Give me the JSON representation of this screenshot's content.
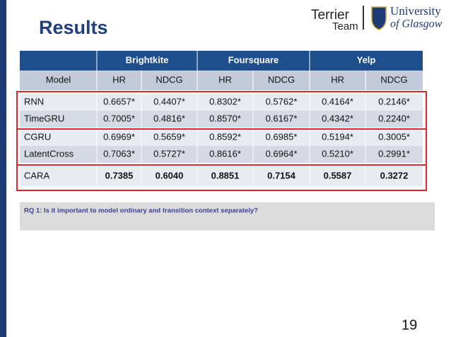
{
  "title": "Results",
  "logos": {
    "terrier": "Terrier",
    "team": "Team",
    "university": "University",
    "glasgow": "of Glasgow"
  },
  "table": {
    "groups": [
      "Brightkite",
      "Foursquare",
      "Yelp"
    ],
    "header": [
      "Model",
      "HR",
      "NDCG",
      "HR",
      "NDCG",
      "HR",
      "NDCG"
    ],
    "rows": [
      [
        "RNN",
        "0.6657*",
        "0.4407*",
        "0.8302*",
        "0.5762*",
        "0.4164*",
        "0.2146*"
      ],
      [
        "TimeGRU",
        "0.7005*",
        "0.4816*",
        "0.8570*",
        "0.6167*",
        "0.4342*",
        "0.2240*"
      ],
      [
        "CGRU",
        "0.6969*",
        "0.5659*",
        "0.8592*",
        "0.6985*",
        "0.5194*",
        "0.3005*"
      ],
      [
        "LatentCross",
        "0.7063*",
        "0.5727*",
        "0.8616*",
        "0.6964*",
        "0.5210*",
        "0.2991*"
      ],
      [
        "CARA",
        "0.7385",
        "0.6040",
        "0.8851",
        "0.7154",
        "0.5587",
        "0.3272"
      ]
    ]
  },
  "question": "RQ 1: Is it important to model ordinary and transition context separately?",
  "page_number": "19"
}
